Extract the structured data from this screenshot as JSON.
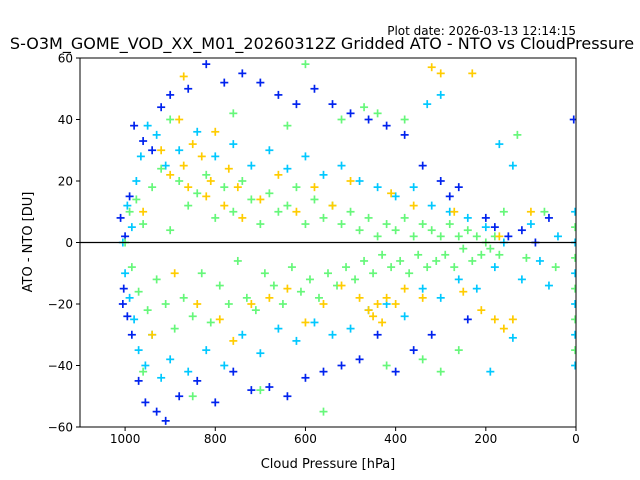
{
  "plot_date": "Plot date: 2026-03-13 12:14:15",
  "chart_data": {
    "type": "scatter",
    "title": "S-O3M_GOME_VOD_XX_M01_20260312Z Gridded ATO - NTO vs CloudPressure",
    "xlabel": "Cloud Pressure [hPa]",
    "ylabel": "ATO - NTO [DU]",
    "xlim": [
      1100,
      0
    ],
    "ylim": [
      -60,
      60
    ],
    "x_reversed": true,
    "x_ticks": [
      1000,
      800,
      600,
      400,
      200,
      0
    ],
    "x_tick_labels": [
      "1000",
      "800",
      "600",
      "400",
      "200",
      "0"
    ],
    "y_ticks": [
      -60,
      -40,
      -20,
      0,
      20,
      40,
      60
    ],
    "y_tick_labels": [
      "−60",
      "−40",
      "−20",
      "0",
      "20",
      "40",
      "60"
    ],
    "reference_line_y": 0,
    "marker": "plus",
    "grid": false,
    "series": [
      {
        "color": "#0022ee",
        "points": [
          [
            1010,
            8
          ],
          [
            1005,
            -20
          ],
          [
            1000,
            2
          ],
          [
            995,
            -24
          ],
          [
            990,
            15
          ],
          [
            985,
            -30
          ],
          [
            980,
            38
          ],
          [
            970,
            -45
          ],
          [
            960,
            33
          ],
          [
            955,
            -52
          ],
          [
            940,
            30
          ],
          [
            930,
            -55
          ],
          [
            920,
            44
          ],
          [
            910,
            -58
          ],
          [
            900,
            48
          ],
          [
            880,
            -50
          ],
          [
            860,
            50
          ],
          [
            840,
            -45
          ],
          [
            820,
            58
          ],
          [
            800,
            -52
          ],
          [
            780,
            52
          ],
          [
            760,
            -42
          ],
          [
            740,
            55
          ],
          [
            720,
            -48
          ],
          [
            700,
            52
          ],
          [
            680,
            -47
          ],
          [
            660,
            48
          ],
          [
            640,
            -50
          ],
          [
            620,
            45
          ],
          [
            600,
            -44
          ],
          [
            580,
            50
          ],
          [
            560,
            -42
          ],
          [
            540,
            45
          ],
          [
            520,
            -40
          ],
          [
            500,
            42
          ],
          [
            480,
            -38
          ],
          [
            460,
            40
          ],
          [
            440,
            -30
          ],
          [
            420,
            38
          ],
          [
            400,
            -42
          ],
          [
            380,
            35
          ],
          [
            360,
            -35
          ],
          [
            340,
            25
          ],
          [
            320,
            -30
          ],
          [
            300,
            20
          ],
          [
            280,
            15
          ],
          [
            260,
            18
          ],
          [
            240,
            -25
          ],
          [
            200,
            8
          ],
          [
            180,
            5
          ],
          [
            150,
            2
          ],
          [
            120,
            4
          ],
          [
            90,
            0
          ],
          [
            60,
            8
          ],
          [
            5,
            40
          ],
          [
            1003,
            -15
          ]
        ]
      },
      {
        "color": "#00c8ff",
        "points": [
          [
            1005,
            0
          ],
          [
            1000,
            -10
          ],
          [
            995,
            12
          ],
          [
            990,
            -18
          ],
          [
            985,
            5
          ],
          [
            980,
            -25
          ],
          [
            975,
            20
          ],
          [
            970,
            -35
          ],
          [
            965,
            28
          ],
          [
            955,
            -40
          ],
          [
            950,
            38
          ],
          [
            940,
            -30
          ],
          [
            930,
            35
          ],
          [
            920,
            -44
          ],
          [
            910,
            25
          ],
          [
            900,
            -38
          ],
          [
            880,
            30
          ],
          [
            860,
            -42
          ],
          [
            840,
            36
          ],
          [
            820,
            -35
          ],
          [
            800,
            28
          ],
          [
            780,
            -40
          ],
          [
            760,
            32
          ],
          [
            740,
            -30
          ],
          [
            720,
            25
          ],
          [
            700,
            -36
          ],
          [
            680,
            30
          ],
          [
            660,
            -28
          ],
          [
            640,
            24
          ],
          [
            620,
            -32
          ],
          [
            600,
            28
          ],
          [
            580,
            -26
          ],
          [
            560,
            22
          ],
          [
            540,
            -30
          ],
          [
            520,
            25
          ],
          [
            500,
            -28
          ],
          [
            480,
            20
          ],
          [
            460,
            -22
          ],
          [
            440,
            18
          ],
          [
            420,
            -20
          ],
          [
            400,
            15
          ],
          [
            380,
            -24
          ],
          [
            360,
            18
          ],
          [
            340,
            -15
          ],
          [
            320,
            12
          ],
          [
            300,
            -18
          ],
          [
            280,
            10
          ],
          [
            260,
            -12
          ],
          [
            240,
            8
          ],
          [
            220,
            -15
          ],
          [
            200,
            5
          ],
          [
            180,
            -8
          ],
          [
            160,
            0
          ],
          [
            140,
            25
          ],
          [
            120,
            -12
          ],
          [
            100,
            6
          ],
          [
            80,
            -6
          ],
          [
            60,
            -14
          ],
          [
            40,
            2
          ],
          [
            2,
            10
          ],
          [
            2,
            0
          ],
          [
            2,
            -10
          ],
          [
            2,
            -20
          ],
          [
            2,
            -30
          ],
          [
            2,
            -40
          ],
          [
            330,
            45
          ],
          [
            300,
            48
          ],
          [
            170,
            32
          ],
          [
            140,
            -31
          ],
          [
            190,
            -42
          ]
        ]
      },
      {
        "color": "#66f77a",
        "points": [
          [
            1000,
            0
          ],
          [
            990,
            10
          ],
          [
            985,
            -8
          ],
          [
            975,
            14
          ],
          [
            970,
            -16
          ],
          [
            960,
            6
          ],
          [
            950,
            -22
          ],
          [
            940,
            18
          ],
          [
            930,
            -12
          ],
          [
            920,
            24
          ],
          [
            910,
            -20
          ],
          [
            900,
            4
          ],
          [
            890,
            -28
          ],
          [
            880,
            20
          ],
          [
            870,
            -18
          ],
          [
            860,
            12
          ],
          [
            850,
            -24
          ],
          [
            840,
            16
          ],
          [
            830,
            -10
          ],
          [
            820,
            22
          ],
          [
            810,
            -26
          ],
          [
            800,
            8
          ],
          [
            790,
            -14
          ],
          [
            780,
            18
          ],
          [
            770,
            -20
          ],
          [
            760,
            10
          ],
          [
            750,
            -6
          ],
          [
            740,
            20
          ],
          [
            730,
            -18
          ],
          [
            720,
            14
          ],
          [
            710,
            -22
          ],
          [
            700,
            6
          ],
          [
            690,
            -10
          ],
          [
            680,
            16
          ],
          [
            670,
            -14
          ],
          [
            660,
            10
          ],
          [
            650,
            -20
          ],
          [
            640,
            12
          ],
          [
            630,
            -8
          ],
          [
            620,
            18
          ],
          [
            610,
            -16
          ],
          [
            600,
            6
          ],
          [
            590,
            -12
          ],
          [
            580,
            14
          ],
          [
            570,
            -18
          ],
          [
            560,
            8
          ],
          [
            550,
            -10
          ],
          [
            540,
            12
          ],
          [
            530,
            -14
          ],
          [
            520,
            6
          ],
          [
            510,
            -8
          ],
          [
            500,
            10
          ],
          [
            490,
            -12
          ],
          [
            480,
            4
          ],
          [
            470,
            -6
          ],
          [
            460,
            8
          ],
          [
            450,
            -10
          ],
          [
            440,
            2
          ],
          [
            430,
            -4
          ],
          [
            420,
            6
          ],
          [
            410,
            -8
          ],
          [
            400,
            4
          ],
          [
            390,
            -6
          ],
          [
            380,
            8
          ],
          [
            370,
            -10
          ],
          [
            360,
            2
          ],
          [
            350,
            -4
          ],
          [
            340,
            6
          ],
          [
            330,
            -8
          ],
          [
            320,
            4
          ],
          [
            310,
            -6
          ],
          [
            300,
            2
          ],
          [
            290,
            -4
          ],
          [
            280,
            6
          ],
          [
            270,
            -8
          ],
          [
            260,
            2
          ],
          [
            250,
            -2
          ],
          [
            240,
            4
          ],
          [
            230,
            -6
          ],
          [
            220,
            2
          ],
          [
            210,
            -4
          ],
          [
            200,
            0
          ],
          [
            190,
            -2
          ],
          [
            180,
            2
          ],
          [
            170,
            -4
          ],
          [
            160,
            10
          ],
          [
            130,
            35
          ],
          [
            110,
            -5
          ],
          [
            70,
            10
          ],
          [
            45,
            -8
          ],
          [
            2,
            5
          ],
          [
            2,
            -5
          ],
          [
            2,
            -15
          ],
          [
            2,
            -25
          ],
          [
            2,
            -35
          ],
          [
            960,
            -42
          ],
          [
            900,
            40
          ],
          [
            850,
            -50
          ],
          [
            760,
            42
          ],
          [
            700,
            -48
          ],
          [
            640,
            38
          ],
          [
            600,
            58
          ],
          [
            560,
            -55
          ],
          [
            520,
            40
          ],
          [
            470,
            44
          ],
          [
            440,
            42
          ],
          [
            420,
            -40
          ],
          [
            380,
            40
          ],
          [
            340,
            -38
          ],
          [
            300,
            -42
          ],
          [
            260,
            -35
          ]
        ]
      },
      {
        "color": "#ffcc00",
        "points": [
          [
            960,
            10
          ],
          [
            940,
            -30
          ],
          [
            920,
            30
          ],
          [
            900,
            22
          ],
          [
            890,
            -10
          ],
          [
            880,
            40
          ],
          [
            870,
            25
          ],
          [
            860,
            18
          ],
          [
            850,
            32
          ],
          [
            840,
            -20
          ],
          [
            830,
            28
          ],
          [
            820,
            15
          ],
          [
            810,
            20
          ],
          [
            800,
            36
          ],
          [
            790,
            -25
          ],
          [
            780,
            12
          ],
          [
            770,
            24
          ],
          [
            760,
            -32
          ],
          [
            750,
            18
          ],
          [
            740,
            8
          ],
          [
            720,
            -20
          ],
          [
            700,
            14
          ],
          [
            680,
            -18
          ],
          [
            660,
            22
          ],
          [
            640,
            -15
          ],
          [
            620,
            10
          ],
          [
            600,
            -26
          ],
          [
            580,
            18
          ],
          [
            560,
            -20
          ],
          [
            540,
            12
          ],
          [
            520,
            -14
          ],
          [
            500,
            20
          ],
          [
            480,
            -18
          ],
          [
            460,
            -22
          ],
          [
            450,
            -24
          ],
          [
            440,
            -20
          ],
          [
            430,
            -26
          ],
          [
            420,
            -18
          ],
          [
            410,
            16
          ],
          [
            400,
            -20
          ],
          [
            380,
            -15
          ],
          [
            360,
            12
          ],
          [
            340,
            -18
          ],
          [
            320,
            57
          ],
          [
            300,
            55
          ],
          [
            270,
            10
          ],
          [
            250,
            -16
          ],
          [
            230,
            55
          ],
          [
            210,
            -22
          ],
          [
            180,
            -25
          ],
          [
            160,
            -28
          ],
          [
            140,
            -25
          ],
          [
            170,
            2
          ],
          [
            100,
            10
          ],
          [
            870,
            54
          ]
        ]
      }
    ]
  }
}
